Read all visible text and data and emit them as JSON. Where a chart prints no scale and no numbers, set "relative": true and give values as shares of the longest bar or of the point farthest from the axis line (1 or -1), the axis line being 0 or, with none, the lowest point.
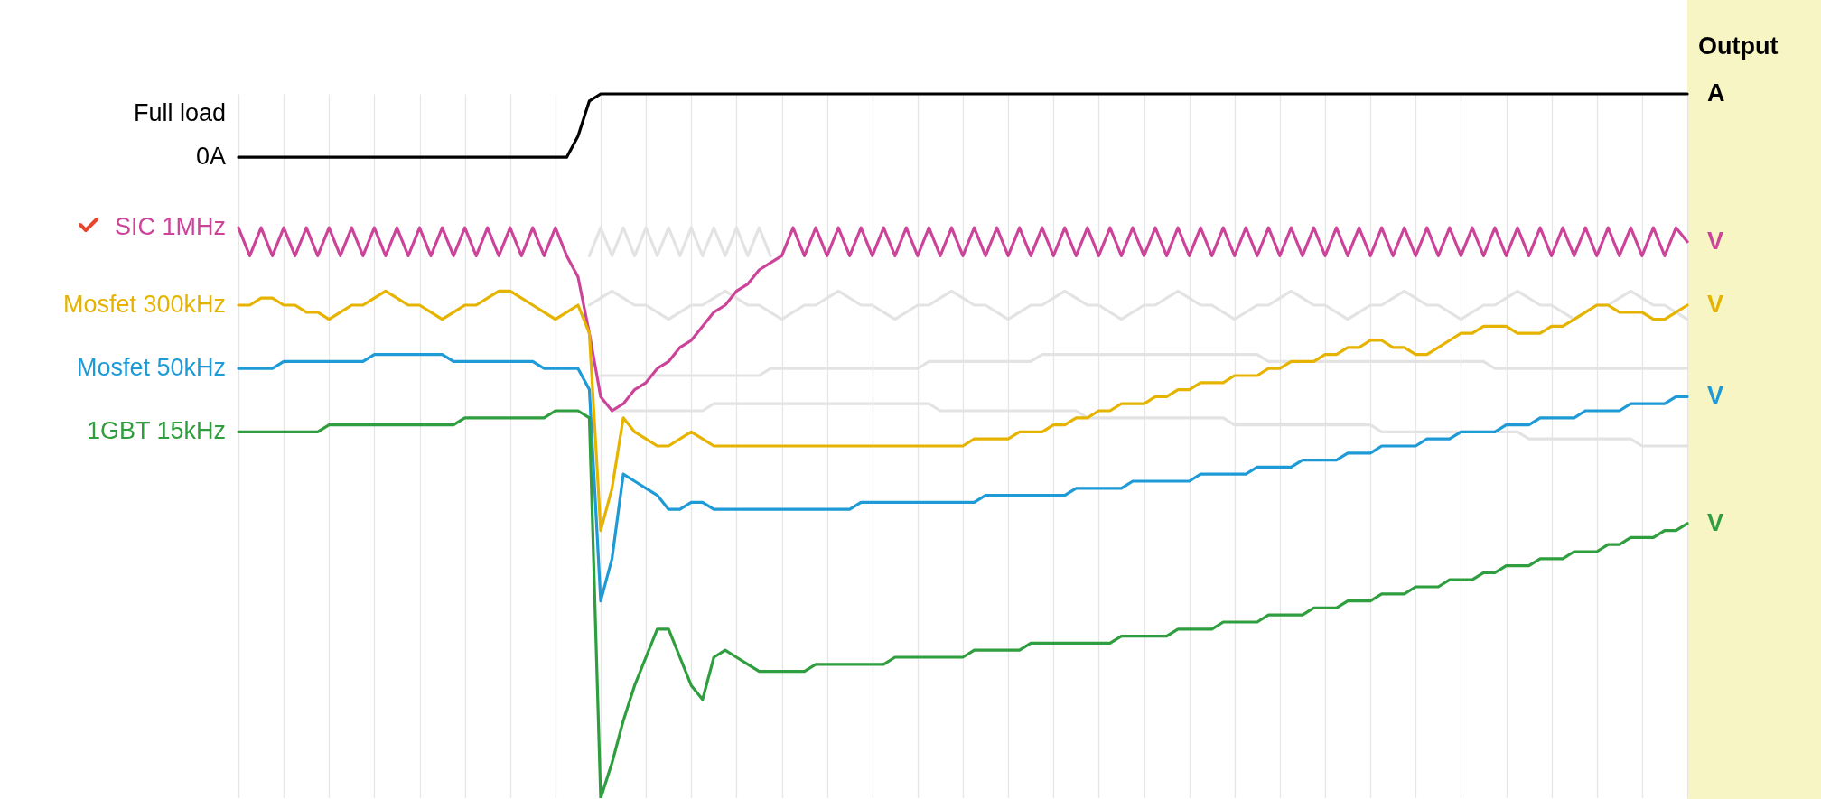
{
  "chart_data": {
    "type": "line",
    "relative": true,
    "grid": "x",
    "line_style": "solid",
    "marker": "none",
    "categories": [
      null,
      null,
      null,
      null,
      null,
      null,
      null,
      null,
      null,
      null,
      null,
      null,
      null,
      null,
      null,
      null,
      null,
      null,
      null,
      null,
      null,
      null,
      null,
      null,
      null,
      null,
      null,
      null,
      null,
      null,
      null,
      null,
      null,
      null,
      null,
      null,
      null,
      null,
      null,
      null,
      null,
      null,
      null,
      null,
      null,
      null,
      null,
      null,
      null,
      null,
      null,
      null,
      null,
      null,
      null,
      null,
      null,
      null,
      null,
      null,
      null,
      null,
      null,
      null,
      null,
      null,
      null,
      null,
      null,
      null,
      null,
      null,
      null,
      null,
      null,
      null,
      null,
      null,
      null,
      null,
      null,
      null,
      null,
      null,
      null,
      null,
      null,
      null,
      null,
      null,
      null,
      null,
      null,
      null,
      null,
      null,
      null,
      null,
      null,
      null,
      null,
      null,
      null,
      null,
      null,
      null,
      null,
      null,
      null,
      null,
      null,
      null,
      null,
      null,
      null,
      null,
      null,
      null,
      null,
      null,
      null,
      null,
      null,
      null,
      null,
      null,
      null,
      null,
      null
    ],
    "series": [
      {
        "color": "#e3e3e3",
        "values": [
          null,
          null,
          null,
          null,
          null,
          null,
          null,
          null,
          null,
          null,
          null,
          null,
          null,
          null,
          null,
          null,
          null,
          null,
          null,
          null,
          null,
          null,
          null,
          null,
          null,
          null,
          null,
          null,
          null,
          null,
          null,
          0.77,
          0.81,
          0.77,
          0.81,
          0.77,
          0.81,
          0.77,
          0.81,
          0.77,
          0.81,
          0.77,
          0.81,
          0.77,
          0.81,
          0.77,
          0.81,
          0.77,
          null,
          null,
          null,
          null,
          null,
          null,
          null,
          null,
          null,
          null,
          null,
          null,
          null,
          null,
          null,
          null,
          null,
          null,
          null,
          null,
          null,
          null,
          null,
          null,
          null,
          null,
          null,
          null,
          null,
          null,
          null,
          null,
          null,
          null,
          null,
          null,
          null,
          null,
          null,
          null,
          null,
          null,
          null,
          null,
          null,
          null,
          null,
          null,
          null,
          null,
          null,
          null,
          null,
          null,
          null,
          null,
          null,
          null,
          null,
          null,
          null,
          null,
          null,
          null,
          null,
          null,
          null,
          null,
          null,
          null,
          null,
          null,
          null,
          null,
          null,
          null,
          null,
          null,
          null,
          null,
          null
        ]
      },
      {
        "color": "#e3e3e3",
        "values": [
          null,
          null,
          null,
          null,
          null,
          null,
          null,
          null,
          null,
          null,
          null,
          null,
          null,
          null,
          null,
          null,
          null,
          null,
          null,
          null,
          null,
          null,
          null,
          null,
          null,
          null,
          null,
          null,
          null,
          null,
          null,
          0.7,
          0.71,
          0.72,
          0.71,
          0.7,
          0.7,
          0.69,
          0.68,
          0.69,
          0.7,
          0.7,
          0.71,
          0.72,
          0.71,
          0.7,
          0.7,
          0.69,
          0.68,
          0.69,
          0.7,
          0.7,
          0.71,
          0.72,
          0.71,
          0.7,
          0.7,
          0.69,
          0.68,
          0.69,
          0.7,
          0.7,
          0.71,
          0.72,
          0.71,
          0.7,
          0.7,
          0.69,
          0.68,
          0.69,
          0.7,
          0.7,
          0.71,
          0.72,
          0.71,
          0.7,
          0.7,
          0.69,
          0.68,
          0.69,
          0.7,
          0.7,
          0.71,
          0.72,
          0.71,
          0.7,
          0.7,
          0.69,
          0.68,
          0.69,
          0.7,
          0.7,
          0.71,
          0.72,
          0.71,
          0.7,
          0.7,
          0.69,
          0.68,
          0.69,
          0.7,
          0.7,
          0.71,
          0.72,
          0.71,
          0.7,
          0.7,
          0.69,
          0.68,
          0.69,
          0.7,
          0.7,
          0.71,
          0.72,
          0.71,
          0.7,
          0.7,
          0.69,
          0.68,
          0.69,
          0.7,
          0.7,
          0.71,
          0.72,
          0.71,
          0.7,
          0.7,
          0.69,
          0.68
        ]
      },
      {
        "color": "#e3e3e3",
        "values": [
          null,
          null,
          null,
          null,
          null,
          null,
          null,
          null,
          null,
          null,
          null,
          null,
          null,
          null,
          null,
          null,
          null,
          null,
          null,
          null,
          null,
          null,
          null,
          null,
          null,
          null,
          null,
          null,
          null,
          null,
          null,
          null,
          0.6,
          0.6,
          0.6,
          0.6,
          0.6,
          0.6,
          0.6,
          0.6,
          0.6,
          0.6,
          0.6,
          0.6,
          0.6,
          0.6,
          0.6,
          0.61,
          0.61,
          0.61,
          0.61,
          0.61,
          0.61,
          0.61,
          0.61,
          0.61,
          0.61,
          0.61,
          0.61,
          0.61,
          0.61,
          0.62,
          0.62,
          0.62,
          0.62,
          0.62,
          0.62,
          0.62,
          0.62,
          0.62,
          0.62,
          0.63,
          0.63,
          0.63,
          0.63,
          0.63,
          0.63,
          0.63,
          0.63,
          0.63,
          0.63,
          0.63,
          0.63,
          0.63,
          0.63,
          0.63,
          0.63,
          0.63,
          0.63,
          0.63,
          0.63,
          0.62,
          0.62,
          0.62,
          0.62,
          0.62,
          0.62,
          0.62,
          0.62,
          0.62,
          0.62,
          0.62,
          0.62,
          0.62,
          0.62,
          0.62,
          0.62,
          0.62,
          0.62,
          0.62,
          0.62,
          0.61,
          0.61,
          0.61,
          0.61,
          0.61,
          0.61,
          0.61,
          0.61,
          0.61,
          0.61,
          0.61,
          0.61,
          0.61,
          0.61,
          0.61,
          0.61,
          0.61,
          0.61
        ]
      },
      {
        "color": "#e3e3e3",
        "values": [
          null,
          null,
          null,
          null,
          null,
          null,
          null,
          null,
          null,
          null,
          null,
          null,
          null,
          null,
          null,
          null,
          null,
          null,
          null,
          null,
          null,
          null,
          null,
          null,
          null,
          null,
          null,
          null,
          null,
          null,
          null,
          null,
          null,
          0.55,
          0.55,
          0.55,
          0.55,
          0.55,
          0.55,
          0.55,
          0.55,
          0.55,
          0.56,
          0.56,
          0.56,
          0.56,
          0.56,
          0.56,
          0.56,
          0.56,
          0.56,
          0.56,
          0.56,
          0.56,
          0.56,
          0.56,
          0.56,
          0.56,
          0.56,
          0.56,
          0.56,
          0.56,
          0.55,
          0.55,
          0.55,
          0.55,
          0.55,
          0.55,
          0.55,
          0.55,
          0.55,
          0.55,
          0.55,
          0.55,
          0.55,
          0.54,
          0.54,
          0.54,
          0.54,
          0.54,
          0.54,
          0.54,
          0.54,
          0.54,
          0.54,
          0.54,
          0.54,
          0.54,
          0.53,
          0.53,
          0.53,
          0.53,
          0.53,
          0.53,
          0.53,
          0.53,
          0.53,
          0.53,
          0.53,
          0.53,
          0.53,
          0.52,
          0.52,
          0.52,
          0.52,
          0.52,
          0.52,
          0.52,
          0.52,
          0.52,
          0.52,
          0.52,
          0.52,
          0.52,
          0.51,
          0.51,
          0.51,
          0.51,
          0.51,
          0.51,
          0.51,
          0.51,
          0.51,
          0.51,
          0.5,
          0.5,
          0.5,
          0.5,
          0.5
        ]
      },
      {
        "color": "#000000",
        "values": [
          0.91,
          0.91,
          0.91,
          0.91,
          0.91,
          0.91,
          0.91,
          0.91,
          0.91,
          0.91,
          0.91,
          0.91,
          0.91,
          0.91,
          0.91,
          0.91,
          0.91,
          0.91,
          0.91,
          0.91,
          0.91,
          0.91,
          0.91,
          0.91,
          0.91,
          0.91,
          0.91,
          0.91,
          0.91,
          0.91,
          0.94,
          0.99,
          1,
          1,
          1,
          1,
          1,
          1,
          1,
          1,
          1,
          1,
          1,
          1,
          1,
          1,
          1,
          1,
          1,
          1,
          1,
          1,
          1,
          1,
          1,
          1,
          1,
          1,
          1,
          1,
          1,
          1,
          1,
          1,
          1,
          1,
          1,
          1,
          1,
          1,
          1,
          1,
          1,
          1,
          1,
          1,
          1,
          1,
          1,
          1,
          1,
          1,
          1,
          1,
          1,
          1,
          1,
          1,
          1,
          1,
          1,
          1,
          1,
          1,
          1,
          1,
          1,
          1,
          1,
          1,
          1,
          1,
          1,
          1,
          1,
          1,
          1,
          1,
          1,
          1,
          1,
          1,
          1,
          1,
          1,
          1,
          1,
          1,
          1,
          1,
          1,
          1,
          1,
          1,
          1,
          1,
          1,
          1,
          1
        ]
      },
      {
        "name": "SIC 1MHz",
        "color": "#cc4499",
        "values": [
          0.81,
          0.77,
          0.81,
          0.77,
          0.81,
          0.77,
          0.81,
          0.77,
          0.81,
          0.77,
          0.81,
          0.77,
          0.81,
          0.77,
          0.81,
          0.77,
          0.81,
          0.77,
          0.81,
          0.77,
          0.81,
          0.77,
          0.81,
          0.77,
          0.81,
          0.77,
          0.81,
          0.77,
          0.81,
          0.77,
          0.74,
          0.66,
          0.57,
          0.55,
          0.56,
          0.58,
          0.59,
          0.61,
          0.62,
          0.64,
          0.65,
          0.67,
          0.69,
          0.7,
          0.72,
          0.73,
          0.75,
          0.76,
          0.77,
          0.81,
          0.77,
          0.81,
          0.77,
          0.81,
          0.77,
          0.81,
          0.77,
          0.81,
          0.77,
          0.81,
          0.77,
          0.81,
          0.77,
          0.81,
          0.77,
          0.81,
          0.77,
          0.81,
          0.77,
          0.81,
          0.77,
          0.81,
          0.77,
          0.81,
          0.77,
          0.81,
          0.77,
          0.81,
          0.77,
          0.81,
          0.77,
          0.81,
          0.77,
          0.81,
          0.77,
          0.81,
          0.77,
          0.81,
          0.77,
          0.81,
          0.77,
          0.81,
          0.77,
          0.81,
          0.77,
          0.81,
          0.77,
          0.81,
          0.77,
          0.81,
          0.77,
          0.81,
          0.77,
          0.81,
          0.77,
          0.81,
          0.77,
          0.81,
          0.77,
          0.81,
          0.77,
          0.81,
          0.77,
          0.81,
          0.77,
          0.81,
          0.77,
          0.81,
          0.77,
          0.81,
          0.77,
          0.81,
          0.77,
          0.81,
          0.77,
          0.81,
          0.77,
          0.81,
          0.79
        ]
      },
      {
        "name": "Mosfet 300kHz",
        "color": "#e6b400",
        "values": [
          0.7,
          0.7,
          0.71,
          0.71,
          0.7,
          0.7,
          0.69,
          0.69,
          0.68,
          0.69,
          0.7,
          0.7,
          0.71,
          0.72,
          0.71,
          0.7,
          0.7,
          0.69,
          0.68,
          0.69,
          0.7,
          0.7,
          0.71,
          0.72,
          0.72,
          0.71,
          0.7,
          0.69,
          0.68,
          0.69,
          0.7,
          0.66,
          0.38,
          0.44,
          0.54,
          0.52,
          0.51,
          0.5,
          0.5,
          0.51,
          0.52,
          0.51,
          0.5,
          0.5,
          0.5,
          0.5,
          0.5,
          0.5,
          0.5,
          0.5,
          0.5,
          0.5,
          0.5,
          0.5,
          0.5,
          0.5,
          0.5,
          0.5,
          0.5,
          0.5,
          0.5,
          0.5,
          0.5,
          0.5,
          0.5,
          0.51,
          0.51,
          0.51,
          0.51,
          0.52,
          0.52,
          0.52,
          0.53,
          0.53,
          0.54,
          0.54,
          0.55,
          0.55,
          0.56,
          0.56,
          0.56,
          0.57,
          0.57,
          0.58,
          0.58,
          0.59,
          0.59,
          0.59,
          0.6,
          0.6,
          0.6,
          0.61,
          0.61,
          0.62,
          0.62,
          0.62,
          0.63,
          0.63,
          0.64,
          0.64,
          0.65,
          0.65,
          0.64,
          0.64,
          0.63,
          0.63,
          0.64,
          0.65,
          0.66,
          0.66,
          0.67,
          0.67,
          0.67,
          0.66,
          0.66,
          0.66,
          0.67,
          0.67,
          0.68,
          0.69,
          0.7,
          0.7,
          0.69,
          0.69,
          0.69,
          0.68,
          0.68,
          0.69,
          0.7
        ]
      },
      {
        "name": "Mosfet 50kHz",
        "color": "#1e9ad6",
        "values": [
          0.61,
          0.61,
          0.61,
          0.61,
          0.62,
          0.62,
          0.62,
          0.62,
          0.62,
          0.62,
          0.62,
          0.62,
          0.63,
          0.63,
          0.63,
          0.63,
          0.63,
          0.63,
          0.63,
          0.62,
          0.62,
          0.62,
          0.62,
          0.62,
          0.62,
          0.62,
          0.62,
          0.61,
          0.61,
          0.61,
          0.61,
          0.58,
          0.28,
          0.34,
          0.46,
          0.45,
          0.44,
          0.43,
          0.41,
          0.41,
          0.42,
          0.42,
          0.41,
          0.41,
          0.41,
          0.41,
          0.41,
          0.41,
          0.41,
          0.41,
          0.41,
          0.41,
          0.41,
          0.41,
          0.41,
          0.42,
          0.42,
          0.42,
          0.42,
          0.42,
          0.42,
          0.42,
          0.42,
          0.42,
          0.42,
          0.42,
          0.43,
          0.43,
          0.43,
          0.43,
          0.43,
          0.43,
          0.43,
          0.43,
          0.44,
          0.44,
          0.44,
          0.44,
          0.44,
          0.45,
          0.45,
          0.45,
          0.45,
          0.45,
          0.45,
          0.46,
          0.46,
          0.46,
          0.46,
          0.46,
          0.47,
          0.47,
          0.47,
          0.47,
          0.48,
          0.48,
          0.48,
          0.48,
          0.49,
          0.49,
          0.49,
          0.5,
          0.5,
          0.5,
          0.5,
          0.51,
          0.51,
          0.51,
          0.52,
          0.52,
          0.52,
          0.52,
          0.53,
          0.53,
          0.53,
          0.54,
          0.54,
          0.54,
          0.54,
          0.55,
          0.55,
          0.55,
          0.55,
          0.56,
          0.56,
          0.56,
          0.56,
          0.57,
          0.57
        ]
      },
      {
        "name": "1GBT 15kHz",
        "color": "#2e9e3e",
        "values": [
          0.52,
          0.52,
          0.52,
          0.52,
          0.52,
          0.52,
          0.52,
          0.52,
          0.53,
          0.53,
          0.53,
          0.53,
          0.53,
          0.53,
          0.53,
          0.53,
          0.53,
          0.53,
          0.53,
          0.53,
          0.54,
          0.54,
          0.54,
          0.54,
          0.54,
          0.54,
          0.54,
          0.54,
          0.55,
          0.55,
          0.55,
          0.54,
          0.0,
          0.05,
          0.11,
          0.16,
          0.2,
          0.24,
          0.24,
          0.2,
          0.16,
          0.14,
          0.2,
          0.21,
          0.2,
          0.19,
          0.18,
          0.18,
          0.18,
          0.18,
          0.18,
          0.19,
          0.19,
          0.19,
          0.19,
          0.19,
          0.19,
          0.19,
          0.2,
          0.2,
          0.2,
          0.2,
          0.2,
          0.2,
          0.2,
          0.21,
          0.21,
          0.21,
          0.21,
          0.21,
          0.22,
          0.22,
          0.22,
          0.22,
          0.22,
          0.22,
          0.22,
          0.22,
          0.23,
          0.23,
          0.23,
          0.23,
          0.23,
          0.24,
          0.24,
          0.24,
          0.24,
          0.25,
          0.25,
          0.25,
          0.25,
          0.26,
          0.26,
          0.26,
          0.26,
          0.27,
          0.27,
          0.27,
          0.28,
          0.28,
          0.28,
          0.29,
          0.29,
          0.29,
          0.3,
          0.3,
          0.3,
          0.31,
          0.31,
          0.31,
          0.32,
          0.32,
          0.33,
          0.33,
          0.33,
          0.34,
          0.34,
          0.34,
          0.35,
          0.35,
          0.35,
          0.36,
          0.36,
          0.37,
          0.37,
          0.37,
          0.38,
          0.38,
          0.39
        ]
      }
    ],
    "annotations": [
      "Output",
      "Full load",
      "0A",
      "A",
      "V",
      "V",
      "V",
      "V"
    ]
  }
}
